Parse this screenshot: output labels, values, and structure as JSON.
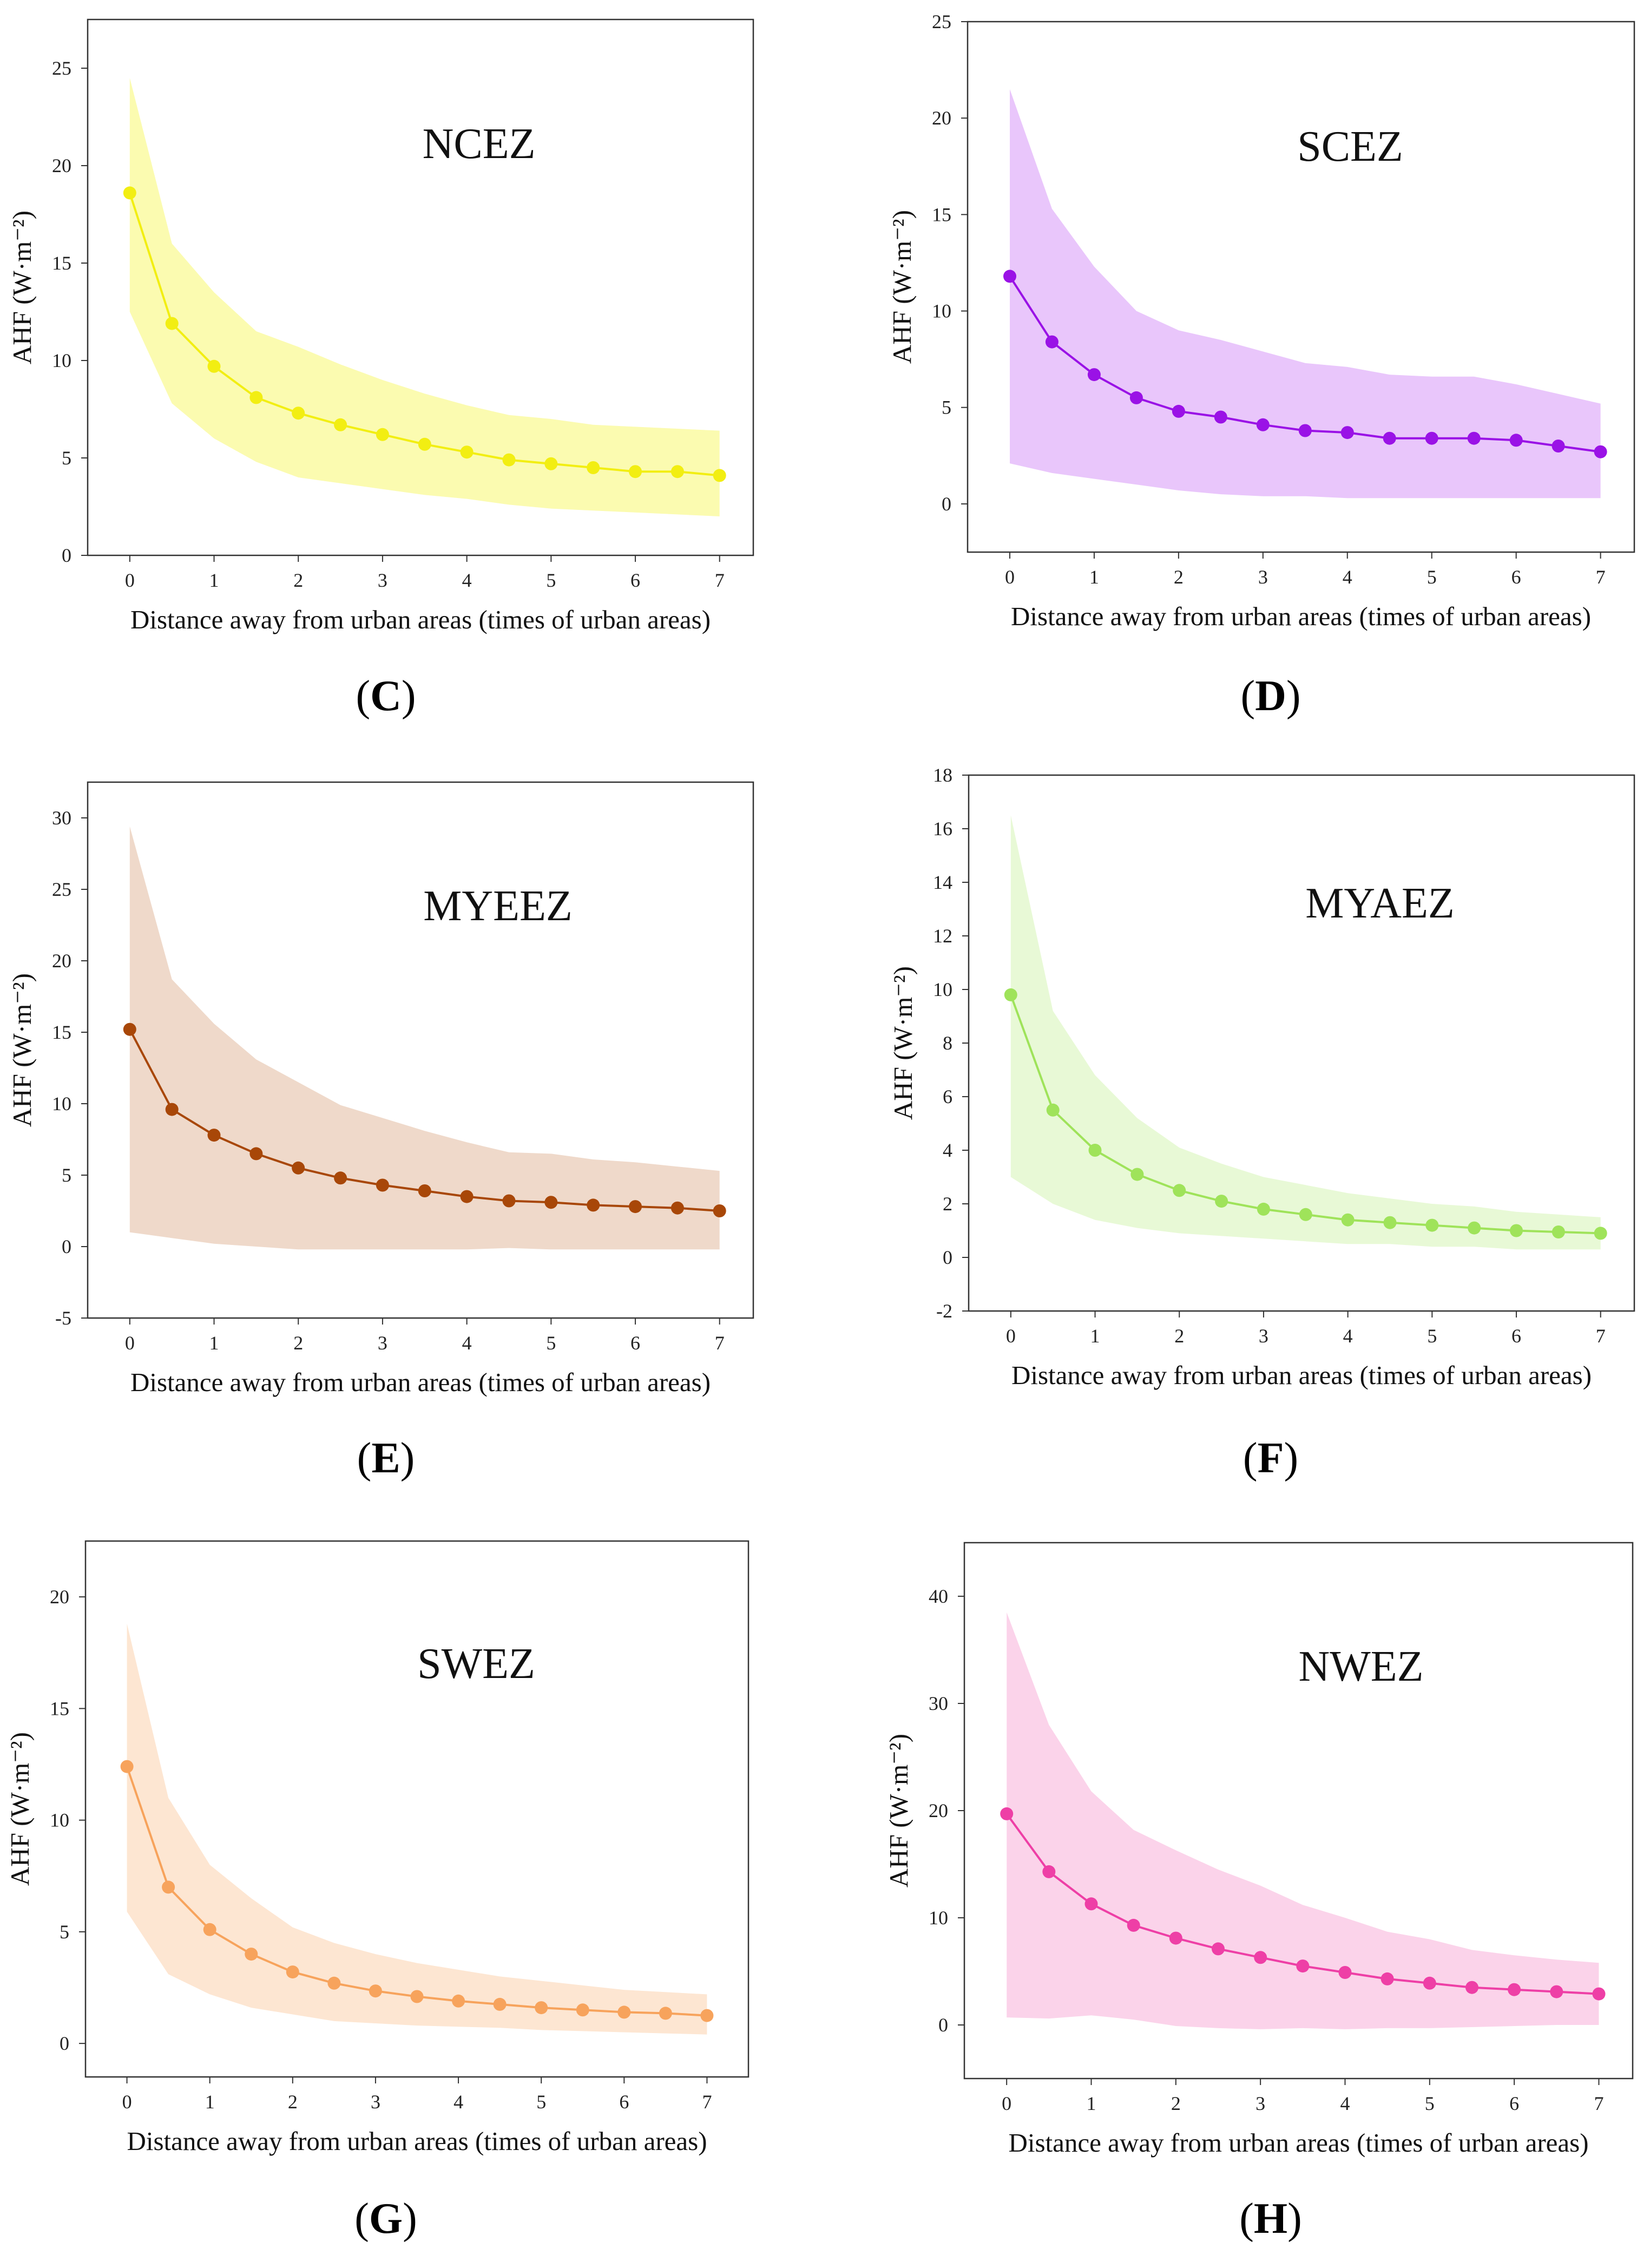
{
  "figure": {
    "x_axis_label": "Distance away from urban areas (times of urban areas)",
    "y_axis_label": "AHF (W·m⁻²)"
  },
  "chart_data": [
    {
      "type": "line",
      "panel": "C",
      "caption": {
        "open": "(",
        "letter": "C",
        "close": ")"
      },
      "title": "NCEZ",
      "xlabel": "Distance away from urban areas (times of urban areas)",
      "ylabel": "AHF (W·m⁻²)",
      "color": "#f2ee12",
      "band_color": "#fbfbb0",
      "xlim": [
        -0.5,
        7.4
      ],
      "ylim": [
        0,
        27.5
      ],
      "xticks": [
        0,
        1,
        2,
        3,
        4,
        5,
        6,
        7
      ],
      "yticks": [
        0,
        5,
        10,
        15,
        20,
        25
      ],
      "x": [
        0,
        0.5,
        1,
        1.5,
        2,
        2.5,
        3,
        3.5,
        4,
        4.5,
        5,
        5.5,
        6,
        6.5,
        7
      ],
      "mean": [
        18.6,
        11.9,
        9.7,
        8.1,
        7.3,
        6.7,
        6.2,
        5.7,
        5.3,
        4.9,
        4.7,
        4.5,
        4.3,
        4.3,
        4.1
      ],
      "upper": [
        24.5,
        16.0,
        13.5,
        11.5,
        10.7,
        9.8,
        9.0,
        8.3,
        7.7,
        7.2,
        7.0,
        6.7,
        6.6,
        6.5,
        6.4
      ],
      "lower": [
        12.5,
        7.8,
        6.0,
        4.8,
        4.0,
        3.7,
        3.4,
        3.1,
        2.9,
        2.6,
        2.4,
        2.3,
        2.2,
        2.1,
        2.0
      ]
    },
    {
      "type": "line",
      "panel": "D",
      "caption": {
        "open": "(",
        "letter": "D",
        "close": ")"
      },
      "title": "SCEZ",
      "xlabel": "Distance away from urban areas (times of urban areas)",
      "ylabel": "AHF (W·m⁻²)",
      "color": "#9a12e6",
      "band_color": "#e9c6fb",
      "xlim": [
        -0.5,
        7.4
      ],
      "ylim": [
        -2.5,
        25
      ],
      "xticks": [
        0,
        1,
        2,
        3,
        4,
        5,
        6,
        7
      ],
      "yticks": [
        0,
        5,
        10,
        15,
        20,
        25
      ],
      "x": [
        0,
        0.5,
        1,
        1.5,
        2,
        2.5,
        3,
        3.5,
        4,
        4.5,
        5,
        5.5,
        6,
        6.5,
        7
      ],
      "mean": [
        11.8,
        8.4,
        6.7,
        5.5,
        4.8,
        4.5,
        4.1,
        3.8,
        3.7,
        3.4,
        3.4,
        3.4,
        3.3,
        3.0,
        2.7
      ],
      "upper": [
        21.5,
        15.3,
        12.3,
        10.0,
        9.0,
        8.5,
        7.9,
        7.3,
        7.1,
        6.7,
        6.6,
        6.6,
        6.2,
        5.7,
        5.2
      ],
      "lower": [
        2.1,
        1.6,
        1.3,
        1.0,
        0.7,
        0.5,
        0.4,
        0.4,
        0.3,
        0.3,
        0.3,
        0.3,
        0.3,
        0.3,
        0.3
      ]
    },
    {
      "type": "line",
      "panel": "E",
      "caption": {
        "open": "(",
        "letter": "E",
        "close": ")"
      },
      "title": "MYEEZ",
      "xlabel": "Distance away from urban areas (times of urban areas)",
      "ylabel": "AHF (W·m⁻²)",
      "color": "#a84708",
      "band_color": "#efd9ca",
      "xlim": [
        -0.5,
        7.4
      ],
      "ylim": [
        -5,
        32.5
      ],
      "xticks": [
        0,
        1,
        2,
        3,
        4,
        5,
        6,
        7
      ],
      "yticks": [
        -5,
        0,
        5,
        10,
        15,
        20,
        25,
        30
      ],
      "x": [
        0,
        0.5,
        1,
        1.5,
        2,
        2.5,
        3,
        3.5,
        4,
        4.5,
        5,
        5.5,
        6,
        6.5,
        7
      ],
      "mean": [
        15.2,
        9.6,
        7.8,
        6.5,
        5.5,
        4.8,
        4.3,
        3.9,
        3.5,
        3.2,
        3.1,
        2.9,
        2.8,
        2.7,
        2.5
      ],
      "upper": [
        29.4,
        18.7,
        15.6,
        13.1,
        11.5,
        9.9,
        9.0,
        8.1,
        7.3,
        6.6,
        6.5,
        6.1,
        5.9,
        5.6,
        5.3
      ],
      "lower": [
        1.0,
        0.6,
        0.2,
        0.0,
        -0.2,
        -0.2,
        -0.2,
        -0.2,
        -0.2,
        -0.1,
        -0.2,
        -0.2,
        -0.2,
        -0.2,
        -0.2
      ]
    },
    {
      "type": "line",
      "panel": "F",
      "caption": {
        "open": "(",
        "letter": "F",
        "close": ")"
      },
      "title": "MYAEZ",
      "xlabel": "Distance away from urban areas (times of urban areas)",
      "ylabel": "AHF (W·m⁻²)",
      "color": "#9fe35a",
      "band_color": "#e8f9d6",
      "xlim": [
        -0.5,
        7.4
      ],
      "ylim": [
        -2,
        18
      ],
      "xticks": [
        0,
        1,
        2,
        3,
        4,
        5,
        6,
        7
      ],
      "yticks": [
        -2,
        0,
        2,
        4,
        6,
        8,
        10,
        12,
        14,
        16,
        18
      ],
      "x": [
        0,
        0.5,
        1,
        1.5,
        2,
        2.5,
        3,
        3.5,
        4,
        4.5,
        5,
        5.5,
        6,
        6.5,
        7
      ],
      "mean": [
        9.8,
        5.5,
        4.0,
        3.1,
        2.5,
        2.1,
        1.8,
        1.6,
        1.4,
        1.3,
        1.2,
        1.1,
        1.0,
        0.95,
        0.9
      ],
      "upper": [
        16.5,
        9.2,
        6.8,
        5.2,
        4.1,
        3.5,
        3.0,
        2.7,
        2.4,
        2.2,
        2.0,
        1.9,
        1.7,
        1.6,
        1.5
      ],
      "lower": [
        3.0,
        2.0,
        1.4,
        1.1,
        0.9,
        0.8,
        0.7,
        0.6,
        0.5,
        0.5,
        0.4,
        0.4,
        0.3,
        0.3,
        0.3
      ]
    },
    {
      "type": "line",
      "panel": "G",
      "caption": {
        "open": "(",
        "letter": "G",
        "close": ")"
      },
      "title": "SWEZ",
      "xlabel": "Distance away from urban areas (times of urban areas)",
      "ylabel": "AHF (W·m⁻²)",
      "color": "#f7a35c",
      "band_color": "#fde6d2",
      "xlim": [
        -0.5,
        7.5
      ],
      "ylim": [
        -1.5,
        22.5
      ],
      "xticks": [
        0,
        1,
        2,
        3,
        4,
        5,
        6,
        7
      ],
      "yticks": [
        0,
        5,
        10,
        15,
        20
      ],
      "x": [
        0,
        0.5,
        1,
        1.5,
        2,
        2.5,
        3,
        3.5,
        4,
        4.5,
        5,
        5.5,
        6,
        6.5,
        7
      ],
      "mean": [
        12.4,
        7.0,
        5.1,
        4.0,
        3.2,
        2.7,
        2.35,
        2.1,
        1.9,
        1.75,
        1.6,
        1.5,
        1.4,
        1.35,
        1.25
      ],
      "upper": [
        18.8,
        11.0,
        8.0,
        6.5,
        5.2,
        4.5,
        4.0,
        3.6,
        3.3,
        3.0,
        2.8,
        2.6,
        2.4,
        2.3,
        2.2
      ],
      "lower": [
        5.9,
        3.1,
        2.2,
        1.6,
        1.3,
        1.0,
        0.9,
        0.8,
        0.75,
        0.7,
        0.6,
        0.55,
        0.5,
        0.45,
        0.4
      ]
    },
    {
      "type": "line",
      "panel": "H",
      "caption": {
        "open": "(",
        "letter": "H",
        "close": ")"
      },
      "title": "NWEZ",
      "xlabel": "Distance away from urban areas (times of urban areas)",
      "ylabel": "AHF (W·m⁻²)",
      "color": "#ee3fa6",
      "band_color": "#fbd3ea",
      "xlim": [
        -0.5,
        7.4
      ],
      "ylim": [
        -5,
        45
      ],
      "xticks": [
        0,
        1,
        2,
        3,
        4,
        5,
        6,
        7
      ],
      "yticks": [
        0,
        10,
        20,
        30,
        40
      ],
      "x": [
        0,
        0.5,
        1,
        1.5,
        2,
        2.5,
        3,
        3.5,
        4,
        4.5,
        5,
        5.5,
        6,
        6.5,
        7
      ],
      "mean": [
        19.7,
        14.3,
        11.3,
        9.3,
        8.1,
        7.1,
        6.3,
        5.5,
        4.9,
        4.3,
        3.9,
        3.5,
        3.3,
        3.1,
        2.9
      ],
      "upper": [
        38.5,
        28.0,
        21.8,
        18.2,
        16.3,
        14.5,
        13.0,
        11.2,
        10.0,
        8.7,
        8.0,
        7.0,
        6.5,
        6.1,
        5.8
      ],
      "lower": [
        0.7,
        0.6,
        0.9,
        0.5,
        -0.1,
        -0.3,
        -0.4,
        -0.3,
        -0.4,
        -0.3,
        -0.3,
        -0.2,
        -0.1,
        0.0,
        0.0
      ]
    }
  ]
}
